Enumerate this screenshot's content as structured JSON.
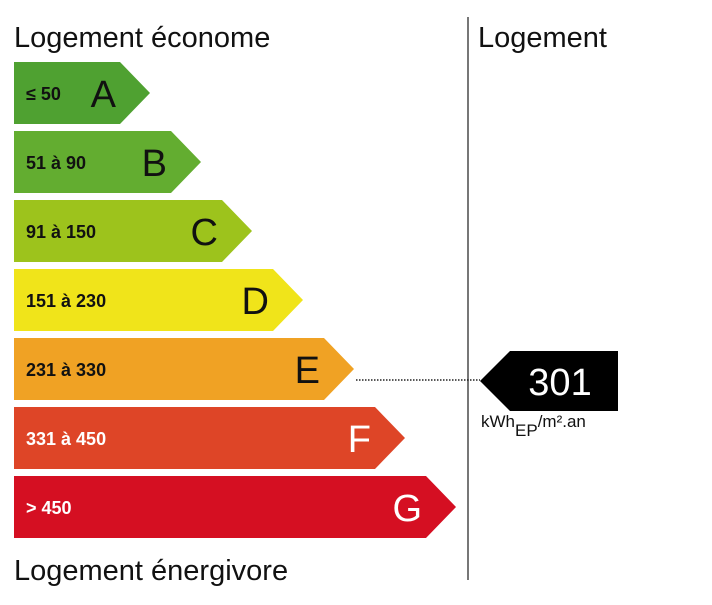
{
  "header": {
    "left": "Logement économe",
    "right": "Logement"
  },
  "classes": [
    {
      "range": "≤ 50",
      "letter": "A",
      "color": "#4fa131"
    },
    {
      "range": "51 à 90",
      "letter": "B",
      "color": "#63ad30"
    },
    {
      "range": "91 à 150",
      "letter": "C",
      "color": "#9dc31c"
    },
    {
      "range": "151 à 230",
      "letter": "D",
      "color": "#f0e41a"
    },
    {
      "range": "231 à 330",
      "letter": "E",
      "color": "#f0a224"
    },
    {
      "range": "331 à 450",
      "letter": "F",
      "color": "#de4527"
    },
    {
      "range": "> 450",
      "letter": "G",
      "color": "#d50f22"
    }
  ],
  "footer": "Logement énergivore",
  "indicator": {
    "value": "301",
    "unit": "kWh",
    "unit_sub": "EP",
    "unit_rest": "/m².an"
  }
}
